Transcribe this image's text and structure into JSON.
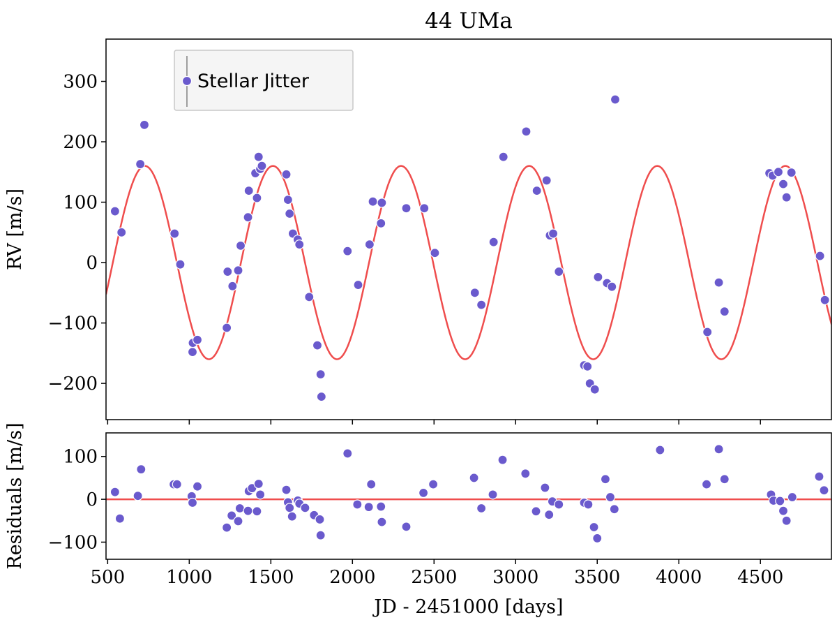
{
  "chart_data": [
    {
      "type": "scatter",
      "title": "44 UMa",
      "xlabel": "",
      "ylabel": "RV [m/s]",
      "xlim": [
        490,
        4935
      ],
      "ylim": [
        -260,
        370
      ],
      "yticks": [
        -200,
        -100,
        0,
        100,
        200,
        300
      ],
      "yticklabels": [
        "−200",
        "−100",
        "0",
        "100",
        "200",
        "300"
      ],
      "legend": {
        "placement": "top-left",
        "entries": [
          "Stellar Jitter"
        ]
      },
      "model": {
        "type": "sinusoid",
        "amplitude": 160,
        "period": 785,
        "peak_x": 728,
        "color": "#ef4d4d"
      },
      "series": [
        {
          "name": "Stellar Jitter",
          "color": "#6a5acd",
          "x": [
            545,
            585,
            700,
            725,
            910,
            945,
            1020,
            1022,
            1050,
            1230,
            1235,
            1265,
            1300,
            1315,
            1360,
            1365,
            1405,
            1415,
            1425,
            1435,
            1445,
            1595,
            1605,
            1615,
            1635,
            1665,
            1675,
            1735,
            1785,
            1805,
            1810,
            1970,
            2035,
            2105,
            2125,
            2175,
            2180,
            2330,
            2440,
            2505,
            2750,
            2790,
            2865,
            2925,
            3065,
            3130,
            3190,
            3210,
            3230,
            3265,
            3420,
            3440,
            3455,
            3485,
            3505,
            3560,
            3590,
            3610,
            4175,
            4245,
            4280,
            4555,
            4575,
            4610,
            4640,
            4660,
            4690,
            4865,
            4895
          ],
          "y": [
            85,
            50,
            163,
            228,
            48,
            -3,
            -148,
            -133,
            -128,
            -108,
            -15,
            -39,
            -13,
            28,
            75,
            119,
            148,
            107,
            175,
            155,
            160,
            146,
            104,
            81,
            48,
            38,
            30,
            -57,
            -137,
            -185,
            -222,
            19,
            -37,
            30,
            101,
            65,
            99,
            90,
            90,
            16,
            -50,
            -70,
            34,
            175,
            217,
            119,
            136,
            45,
            48,
            -15,
            -170,
            -172,
            -200,
            -210,
            -24,
            -34,
            -40,
            270,
            -115,
            -33,
            -81,
            148,
            144,
            150,
            130,
            108,
            149,
            11,
            -62
          ]
        }
      ]
    },
    {
      "type": "scatter",
      "title": "",
      "xlabel": "JD - 2451000 [days]",
      "ylabel": "Residuals [m/s]",
      "xlim": [
        490,
        4935
      ],
      "ylim": [
        -140,
        155
      ],
      "xticks": [
        500,
        1000,
        1500,
        2000,
        2500,
        3000,
        3500,
        4000,
        4500
      ],
      "xticklabels": [
        "500",
        "1000",
        "1500",
        "2000",
        "2500",
        "3000",
        "3500",
        "4000",
        "4500"
      ],
      "yticks": [
        -100,
        0,
        100
      ],
      "yticklabels": [
        "−100",
        "0",
        "100"
      ],
      "reference_line": {
        "y": 0,
        "color": "#ef4d4d"
      },
      "series": [
        {
          "color": "#6a5acd",
          "x": [
            545,
            575,
            685,
            705,
            905,
            925,
            1015,
            1020,
            1050,
            1230,
            1260,
            1300,
            1310,
            1360,
            1365,
            1385,
            1415,
            1425,
            1435,
            1595,
            1605,
            1615,
            1630,
            1665,
            1675,
            1710,
            1765,
            1800,
            1805,
            1970,
            2030,
            2100,
            2115,
            2175,
            2180,
            2330,
            2435,
            2495,
            2745,
            2790,
            2860,
            2920,
            3060,
            3125,
            3180,
            3205,
            3225,
            3265,
            3420,
            3445,
            3480,
            3500,
            3550,
            3580,
            3605,
            3885,
            4170,
            4245,
            4280,
            4565,
            4580,
            4620,
            4640,
            4660,
            4695,
            4860,
            4890
          ],
          "y": [
            17,
            -45,
            8,
            70,
            35,
            35,
            7,
            -8,
            30,
            -66,
            -38,
            -51,
            -21,
            -27,
            19,
            26,
            -28,
            36,
            11,
            22,
            -7,
            -20,
            -40,
            -3,
            -10,
            -20,
            -37,
            -47,
            -84,
            107,
            -12,
            -18,
            35,
            -17,
            -53,
            -64,
            15,
            35,
            50,
            -21,
            11,
            92,
            60,
            -28,
            27,
            -36,
            -5,
            -12,
            -8,
            -12,
            -65,
            -91,
            47,
            5,
            -23,
            115,
            35,
            117,
            47,
            11,
            -3,
            -4,
            -27,
            -50,
            5,
            53,
            21
          ]
        }
      ]
    }
  ]
}
